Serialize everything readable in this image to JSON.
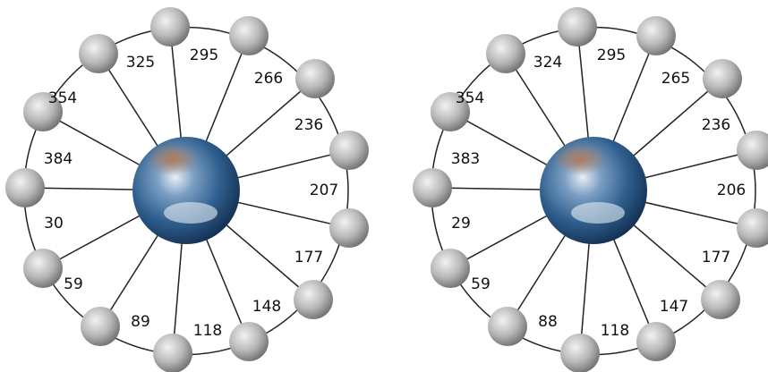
{
  "wheels": [
    {
      "labels": [
        325,
        295,
        266,
        236,
        207,
        177,
        148,
        118,
        89,
        59,
        30,
        384,
        354
      ]
    },
    {
      "labels": [
        324,
        295,
        265,
        236,
        206,
        177,
        147,
        118,
        88,
        59,
        29,
        383,
        354
      ]
    }
  ]
}
